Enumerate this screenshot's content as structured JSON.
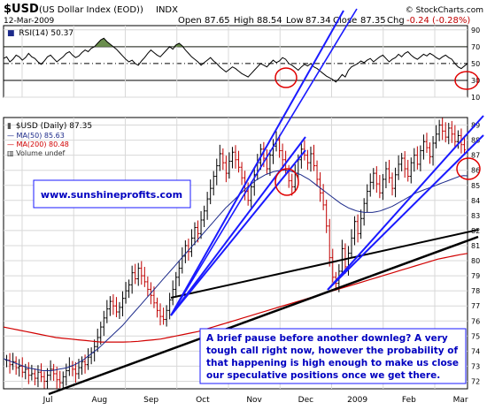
{
  "header": {
    "symbol": "$USD",
    "name": "(US Dollar Index (EOD))",
    "exchange": "INDX",
    "date": "12-Mar-2009",
    "open_label": "Open",
    "open": "87.65",
    "high_label": "High",
    "high": "88.54",
    "low_label": "Low",
    "low": "87.34",
    "close_label": "Close",
    "close": "87.35",
    "chg_label": "Chg",
    "chg": "-0.24 (-0.28%)",
    "brand": "© StockCharts.com"
  },
  "rsi_panel": {
    "legend": "RSI(14) 50.37",
    "ylim": [
      10,
      95
    ],
    "ticks": [
      90,
      70,
      50,
      30,
      10
    ],
    "overbought": 70,
    "oversold": 30,
    "centerline": 50,
    "values": [
      56,
      58,
      52,
      55,
      60,
      58,
      54,
      57,
      62,
      58,
      56,
      52,
      49,
      53,
      58,
      60,
      56,
      52,
      55,
      58,
      62,
      64,
      60,
      57,
      59,
      63,
      66,
      64,
      68,
      70,
      74,
      78,
      80,
      76,
      73,
      70,
      67,
      63,
      59,
      55,
      52,
      54,
      50,
      48,
      53,
      57,
      62,
      66,
      63,
      60,
      58,
      62,
      66,
      70,
      67,
      72,
      74,
      71,
      66,
      62,
      58,
      55,
      52,
      48,
      51,
      54,
      57,
      53,
      50,
      46,
      43,
      40,
      43,
      46,
      44,
      41,
      38,
      36,
      34,
      38,
      42,
      46,
      50,
      48,
      46,
      50,
      54,
      51,
      53,
      57,
      55,
      50,
      48,
      45,
      42,
      46,
      49,
      47,
      50,
      46,
      44,
      41,
      38,
      35,
      33,
      31,
      28,
      32,
      37,
      34,
      42,
      46,
      48,
      50,
      53,
      51,
      54,
      56,
      52,
      55,
      58,
      60,
      56,
      52,
      55,
      57,
      61,
      58,
      62,
      64,
      60,
      57,
      55,
      58,
      61,
      59,
      62,
      60,
      57,
      55,
      58,
      60,
      57,
      55,
      50,
      46,
      44,
      47,
      50
    ]
  },
  "chart_data": {
    "type": "line",
    "title": "$USD (Daily) 87.35",
    "xlabel": "",
    "ylabel": "",
    "x_labels": [
      "Jul",
      "Aug",
      "Sep",
      "Oct",
      "Nov",
      "Dec",
      "2009",
      "Feb",
      "Mar"
    ],
    "ylim": [
      71.5,
      89.5
    ],
    "yticks": [
      72,
      73,
      74,
      75,
      76,
      77,
      78,
      79,
      80,
      81,
      82,
      83,
      84,
      85,
      86,
      87,
      88,
      89
    ],
    "grid": true,
    "legend_position": "top-left",
    "series": [
      {
        "name": "$USD (Daily) 87.35",
        "kind": "ohlc",
        "color": "#c00000",
        "values": [
          73.4,
          73.1,
          73.3,
          72.9,
          73.0,
          72.6,
          72.8,
          72.4,
          72.5,
          72.2,
          72.6,
          72.3,
          72.0,
          72.4,
          72.8,
          72.5,
          72.1,
          71.9,
          72.3,
          72.7,
          73.0,
          72.8,
          72.5,
          72.9,
          73.3,
          73.1,
          73.6,
          73.9,
          74.3,
          74.9,
          75.6,
          76.2,
          76.8,
          77.3,
          77.0,
          76.6,
          76.9,
          77.5,
          78.0,
          78.4,
          79.2,
          78.8,
          79.5,
          79.0,
          78.6,
          78.1,
          77.7,
          77.2,
          76.7,
          76.3,
          76.1,
          76.7,
          77.4,
          78.1,
          78.9,
          79.5,
          80.3,
          81.0,
          80.6,
          81.5,
          82.2,
          81.8,
          82.7,
          83.3,
          84.1,
          84.8,
          85.6,
          86.3,
          87.1,
          86.5,
          85.8,
          86.6,
          87.2,
          86.7,
          86.2,
          85.5,
          84.6,
          84.0,
          84.9,
          85.7,
          86.5,
          87.4,
          86.8,
          86.1,
          87.0,
          87.6,
          88.0,
          87.3,
          86.7,
          86.0,
          85.3,
          84.9,
          85.8,
          86.7,
          87.4,
          87.0,
          86.5,
          87.1,
          86.3,
          85.4,
          84.5,
          83.7,
          82.3,
          80.2,
          78.9,
          78.5,
          79.3,
          80.8,
          79.6,
          80.5,
          81.5,
          82.6,
          81.8,
          82.8,
          83.8,
          84.6,
          85.2,
          85.8,
          85.1,
          84.5,
          85.4,
          86.1,
          85.5,
          84.8,
          85.7,
          86.4,
          86.8,
          86.1,
          85.6,
          86.5,
          87.0,
          86.4,
          87.3,
          87.9,
          87.5,
          86.9,
          87.8,
          88.4,
          89.0,
          88.6,
          88.2,
          88.8,
          88.4,
          87.9,
          88.3,
          87.7,
          87.35
        ]
      },
      {
        "name": "MA(50) 85.63",
        "kind": "line",
        "color": "#1c2a8a",
        "values": [
          73.5,
          73.4,
          73.3,
          73.2,
          73.1,
          73.0,
          72.9,
          72.85,
          72.8,
          72.75,
          72.7,
          72.7,
          72.7,
          72.75,
          72.8,
          72.85,
          72.9,
          73.0,
          73.1,
          73.25,
          73.4,
          73.6,
          73.8,
          74.0,
          74.2,
          74.45,
          74.7,
          74.95,
          75.2,
          75.45,
          75.7,
          76.0,
          76.3,
          76.6,
          76.9,
          77.2,
          77.5,
          77.8,
          78.1,
          78.4,
          78.7,
          79.0,
          79.3,
          79.6,
          79.9,
          80.2,
          80.5,
          80.8,
          81.1,
          81.4,
          81.7,
          82.0,
          82.3,
          82.6,
          82.9,
          83.2,
          83.5,
          83.75,
          84.0,
          84.25,
          84.5,
          84.75,
          85.0,
          85.2,
          85.4,
          85.55,
          85.7,
          85.8,
          85.9,
          85.95,
          86.0,
          86.0,
          85.95,
          85.9,
          85.8,
          85.7,
          85.55,
          85.4,
          85.2,
          85.0,
          84.8,
          84.6,
          84.4,
          84.2,
          84.0,
          83.8,
          83.65,
          83.5,
          83.4,
          83.3,
          83.25,
          83.2,
          83.2,
          83.2,
          83.25,
          83.3,
          83.4,
          83.5,
          83.6,
          83.75,
          83.9,
          84.05,
          84.2,
          84.35,
          84.5,
          84.6,
          84.7,
          84.8,
          84.9,
          85.0,
          85.1,
          85.2,
          85.3,
          85.4,
          85.5,
          85.6,
          85.65,
          85.63
        ]
      },
      {
        "name": "MA(200) 80.48",
        "kind": "line",
        "color": "#d10000",
        "values": [
          75.6,
          75.5,
          75.4,
          75.3,
          75.2,
          75.1,
          75.0,
          74.9,
          74.85,
          74.8,
          74.75,
          74.7,
          74.65,
          74.6,
          74.6,
          74.6,
          74.6,
          74.62,
          74.65,
          74.7,
          74.75,
          74.8,
          74.9,
          75.0,
          75.1,
          75.2,
          75.3,
          75.45,
          75.6,
          75.75,
          75.9,
          76.05,
          76.2,
          76.35,
          76.5,
          76.65,
          76.8,
          76.95,
          77.1,
          77.25,
          77.4,
          77.55,
          77.7,
          77.85,
          78.0,
          78.15,
          78.3,
          78.45,
          78.6,
          78.75,
          78.9,
          79.05,
          79.2,
          79.35,
          79.5,
          79.65,
          79.8,
          79.95,
          80.1,
          80.2,
          80.3,
          80.4,
          80.48
        ]
      },
      {
        "name": "Volume undef",
        "kind": "legend-only",
        "color": "#555555",
        "values": []
      }
    ]
  },
  "annotations": {
    "website": "www.sunshineprofits.com",
    "comment_lines": [
      "A brief pause before another downleg? A very",
      "tough call right now, however the probability of",
      "that happening is high enough to make us close",
      "our speculative positions once we get there."
    ]
  },
  "colors": {
    "panel_bg": "#ffffff",
    "grid": "#d8d8d8",
    "blue_trendline": "#1a1aff",
    "black_trendline": "#000000",
    "circle": "#e00000",
    "rsi_fill": "#6b8e4e",
    "annotation_text": "#0000c0",
    "annotation_bg": "#ffffff",
    "up_bar": "#000000",
    "down_bar": "#c00000"
  }
}
